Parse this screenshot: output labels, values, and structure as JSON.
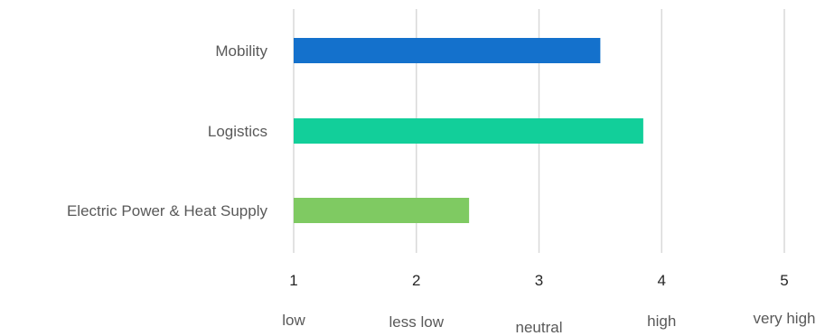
{
  "chart_data": {
    "type": "bar",
    "orientation": "horizontal",
    "title": "",
    "xlabel": "",
    "ylabel": "",
    "categories": [
      "Mobility",
      "Logistics",
      "Electric Power & Heat Supply"
    ],
    "values": [
      3.5,
      3.85,
      2.43
    ],
    "colors": [
      "#1471cc",
      "#12cf9a",
      "#7fca62"
    ],
    "xlim": [
      1,
      5
    ],
    "x_ticks": [
      1,
      2,
      3,
      4,
      5
    ],
    "x_tick_labels": [
      "1",
      "2",
      "3",
      "4",
      "5"
    ],
    "scale_labels": [
      "low",
      "less low",
      "neutral",
      "high",
      "very high"
    ],
    "grid": true,
    "legend": "none"
  }
}
